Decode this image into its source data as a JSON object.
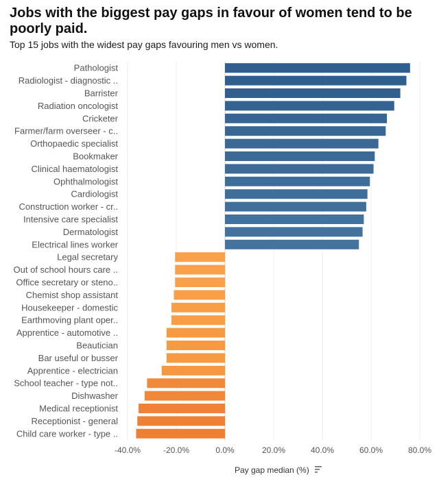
{
  "chart_data": {
    "type": "bar",
    "orientation": "horizontal",
    "title": "Jobs with the biggest pay gaps in favour of women tend to be poorly paid.",
    "subtitle": "Top 15 jobs with the widest pay gaps favouring men vs women.",
    "xlabel": "Pay gap median (%)",
    "xlim": [
      -45,
      85
    ],
    "xticks": [
      -40,
      -20,
      0,
      20,
      40,
      60,
      80
    ],
    "xtick_labels": [
      "-40.0%",
      "-20.0%",
      "0.0%",
      "20.0%",
      "40.0%",
      "60.0%",
      "80.0%"
    ],
    "grid": "vertical",
    "categories": [
      "Pathologist",
      "Radiologist - diagnostic ..",
      "Barrister",
      "Radiation oncologist",
      "Cricketer",
      "Farmer/farm overseer - c..",
      "Orthopaedic specialist",
      "Bookmaker",
      "Clinical haematologist",
      "Ophthalmologist",
      "Cardiologist",
      "Construction worker - cr..",
      "Intensive care specialist",
      "Dermatologist",
      "Electrical lines worker",
      "Legal secretary",
      "Out of school hours care ..",
      "Office secretary or steno..",
      "Chemist shop assistant",
      "Housekeeper - domestic",
      "Earthmoving plant oper..",
      "Apprentice - automotive ..",
      "Beautician",
      "Bar useful or busser",
      "Apprentice - electrician",
      "School teacher - type not..",
      "Dishwasher",
      "Medical receptionist",
      "Receptionist - general",
      "Child care worker - type .."
    ],
    "values": [
      76,
      74.5,
      72,
      69.5,
      66.5,
      66,
      63,
      61.5,
      61,
      59.5,
      58.5,
      58,
      57,
      56.5,
      55,
      -20.5,
      -20.5,
      -20.5,
      -21,
      -22,
      -22,
      -24,
      -24,
      -24,
      -26,
      -32,
      -33,
      -35.5,
      -36,
      -36.5
    ],
    "colors": [
      "#2f5f8f",
      "#2f5f8f",
      "#325f90",
      "#346291",
      "#366593",
      "#386794",
      "#3a6996",
      "#3b6a97",
      "#3c6b98",
      "#3d6d99",
      "#3e6e9a",
      "#406f9b",
      "#41719c",
      "#42729d",
      "#44749e",
      "#f8a04a",
      "#f8a04a",
      "#f8a04a",
      "#f89f48",
      "#f89e47",
      "#f89e47",
      "#f79a44",
      "#f79a44",
      "#f79a44",
      "#f69741",
      "#f1893a",
      "#f08739",
      "#ef8236",
      "#ee8135",
      "#ee8034"
    ]
  },
  "sort_icon": "sort-descending-icon"
}
